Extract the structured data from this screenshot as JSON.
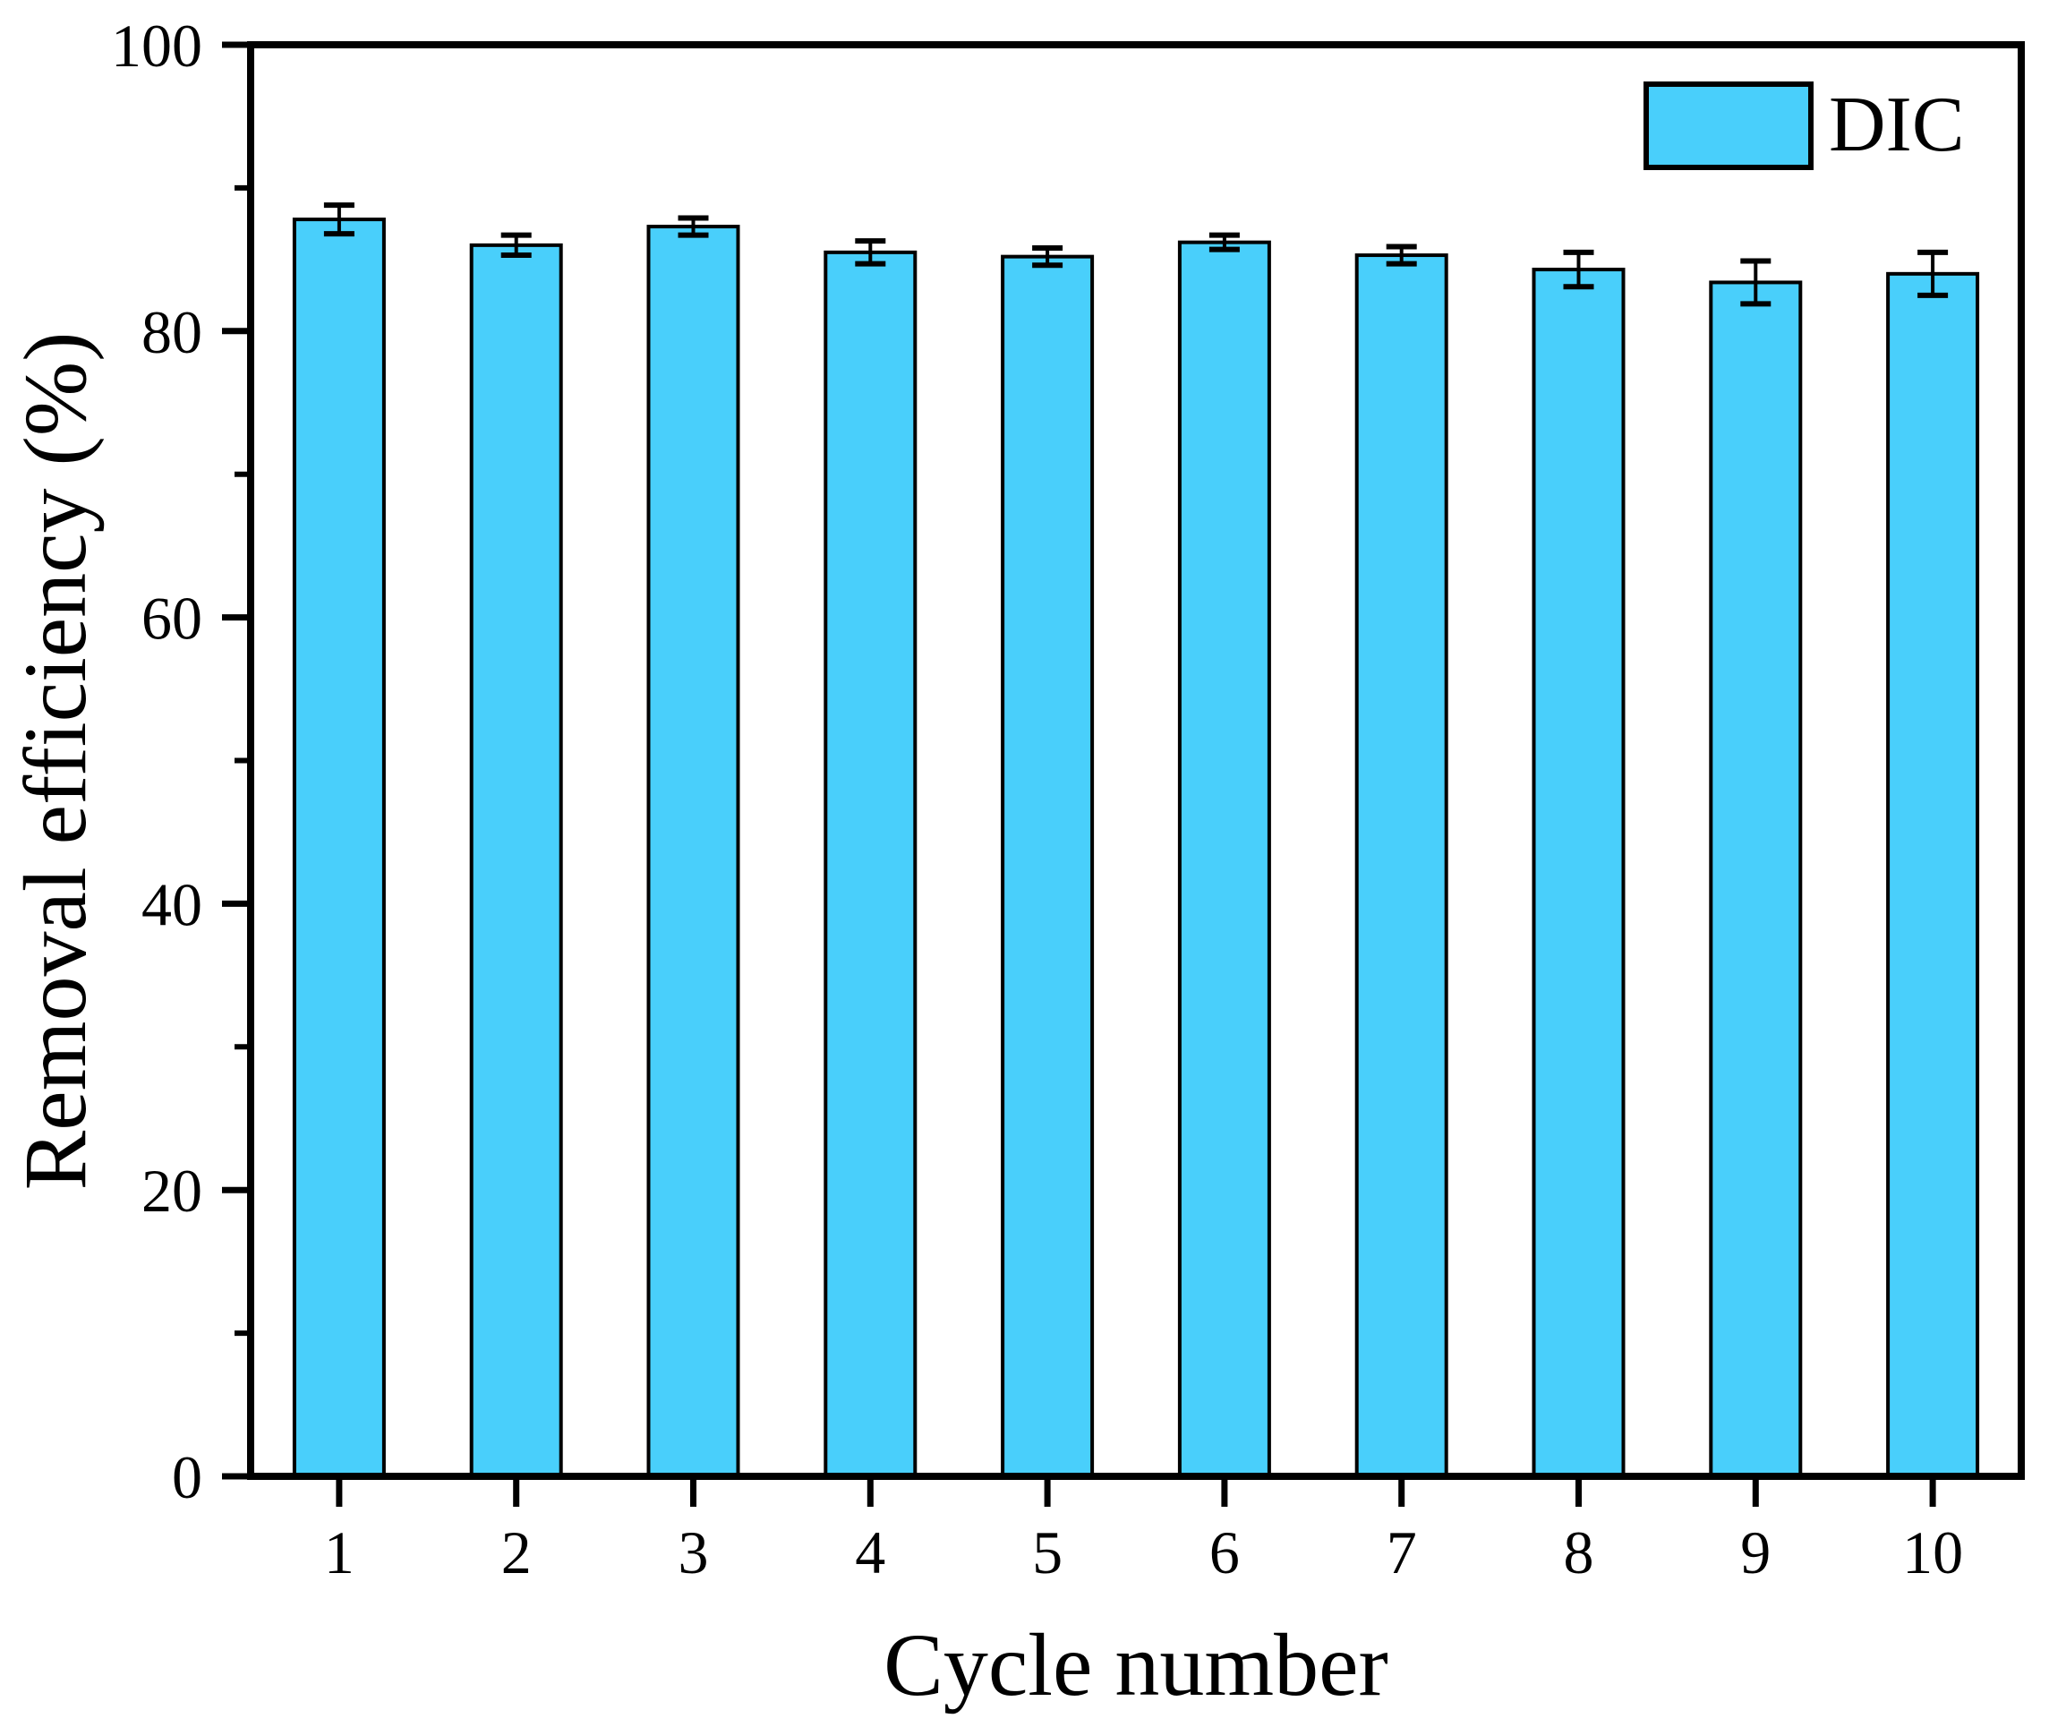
{
  "chart_data": {
    "type": "bar",
    "title": "",
    "xlabel": "Cycle number",
    "ylabel": "Removal efficiency (%)",
    "categories": [
      "1",
      "2",
      "3",
      "4",
      "5",
      "6",
      "7",
      "8",
      "9",
      "10"
    ],
    "series": [
      {
        "name": "DIC",
        "values": [
          87.8,
          86.0,
          87.3,
          85.5,
          85.2,
          86.2,
          85.3,
          84.3,
          83.4,
          84.0
        ],
        "errors": [
          1.0,
          0.7,
          0.6,
          0.8,
          0.6,
          0.5,
          0.6,
          1.2,
          1.5,
          1.5
        ],
        "fill_color": "#49CFFB",
        "border_color": "#000000"
      }
    ],
    "ylim": [
      0,
      100
    ],
    "yticks_major": [
      0,
      20,
      40,
      60,
      80,
      100
    ],
    "yticks_minor": [
      10,
      30,
      50,
      70,
      90
    ],
    "grid": false,
    "legend": {
      "position": "top-right",
      "entries": [
        {
          "label": "DIC",
          "swatch_color": "#49CFFB",
          "swatch_border": "#000000"
        }
      ]
    },
    "axis_color": "#000000",
    "background_color": "#ffffff"
  }
}
